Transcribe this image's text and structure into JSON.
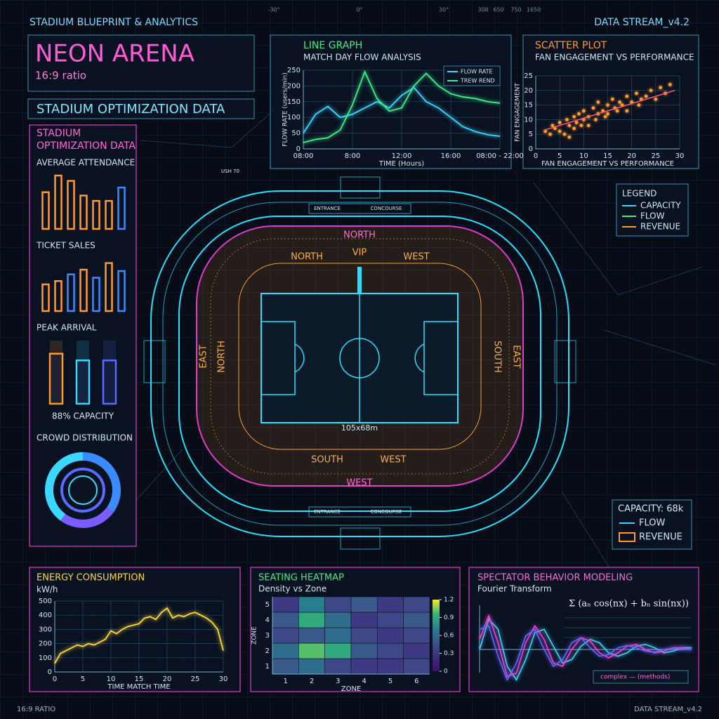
{
  "header": {
    "left": "STADIUM BLUEPRINT & ANALYTICS",
    "right": "DATA STREAM_v4.2",
    "ruler": [
      "-30°",
      "0°",
      "30°",
      "308",
      "650",
      "750",
      "1650"
    ]
  },
  "title": {
    "name": "NEON ARENA",
    "ratio": "16:9 ratio",
    "banner": "STADIUM OPTIMIZATION DATA"
  },
  "left_panel": {
    "title": [
      "STADIUM",
      "OPTIMIZATION DATA"
    ]
  },
  "legend": {
    "title": "LEGEND",
    "items": [
      {
        "label": "CAPACITY",
        "color": "#3ad7ff"
      },
      {
        "label": "FLOW",
        "color": "#3cf08a"
      },
      {
        "label": "REVENUE",
        "color": "#ff9a2e"
      }
    ]
  },
  "capacity_box": {
    "title": "CAPACITY: 68k",
    "items": [
      {
        "label": "FLOW",
        "color": "#3ad7ff"
      },
      {
        "label": "REVENUE",
        "color": "#ff9a2e"
      }
    ]
  },
  "stadium": {
    "labels": [
      "NORTH",
      "NORTH",
      "VIP",
      "WEST",
      "EAST",
      "NORTH",
      "SOUTH",
      "EAST",
      "SOUTH",
      "WEST",
      "WEST",
      "105x68m",
      "ENTRANCE",
      "CONCOURSE",
      "ENTRANCE",
      "CONCOURSE",
      "USH 70"
    ]
  },
  "footer": {
    "left": "16:9 RATIO",
    "right": "DATA STREAM_v4.2"
  },
  "chart_data": [
    {
      "type": "bar",
      "title": "AVERAGE ATTENDANCE",
      "values": [
        55,
        80,
        72,
        50,
        42,
        42,
        62
      ],
      "colors": [
        "#ff9a2e",
        "#ff9a2e",
        "#ff9a2e",
        "#ff9a2e",
        "#ff9a2e",
        "#ff9a2e",
        "#3a8cff"
      ]
    },
    {
      "type": "bar",
      "title": "TICKET SALES",
      "values": [
        40,
        45,
        55,
        62,
        50,
        72,
        60
      ],
      "colors": [
        "#ff9a2e",
        "#ff9a2e",
        "#3a8cff",
        "#ff9a2e",
        "#3a8cff",
        "#ff9a2e",
        "#3a8cff"
      ]
    },
    {
      "type": "bar",
      "title": "PEAK ARRIVAL",
      "values": [
        75,
        65,
        65
      ],
      "colors": [
        "#ff9a2e",
        "#3ad7ff",
        "#5a6cff"
      ],
      "annotation": "88% CAPACITY"
    },
    {
      "type": "pie",
      "title": "CROWD DISTRIBUTION",
      "values": [
        35,
        25,
        40
      ],
      "colors": [
        "#3a8cff",
        "#7a5cff",
        "#3ad7ff"
      ]
    },
    {
      "type": "line",
      "title": "LINE GRAPH",
      "subtitle": "MATCH DAY FLOW ANALYSIS",
      "ylabel": "FLOW RATE (users/min)",
      "xlabel": "TIME (Hours)",
      "x": [
        0,
        0.25,
        0.5,
        0.75,
        1,
        1.25,
        1.5,
        1.75,
        2,
        2.25,
        2.5,
        2.75,
        3,
        3.25,
        3.5,
        3.75,
        4
      ],
      "xlim": [
        0,
        4
      ],
      "xticks": [
        {
          "value": 0,
          "label": "08:00"
        },
        {
          "value": 1,
          "label": "8:00"
        },
        {
          "value": 2,
          "label": "12:00"
        },
        {
          "value": 3,
          "label": "16:00"
        },
        {
          "value": 4,
          "label": "08:00 - 22:00"
        }
      ],
      "ylim": [
        0,
        250
      ],
      "yticks": [
        0,
        50,
        100,
        150,
        200,
        250
      ],
      "grid": true,
      "series": [
        {
          "name": "FLOW RATE",
          "color": "#3ad7ff",
          "values": [
            50,
            110,
            135,
            100,
            110,
            130,
            150,
            130,
            170,
            195,
            150,
            130,
            100,
            70,
            55,
            45,
            40
          ]
        },
        {
          "name": "TREW REND",
          "color": "#3cf08a",
          "values": [
            20,
            30,
            35,
            60,
            140,
            245,
            160,
            120,
            130,
            200,
            240,
            200,
            175,
            165,
            160,
            150,
            145
          ]
        }
      ]
    },
    {
      "type": "scatter",
      "title": "SCATTER PLOT",
      "subtitle": "FAN ENGAGEMENT VS PERFORMANCE",
      "ylabel": "FAN ENGAGEMENT",
      "xlabel": "FAN ENGAGEMENT VS PERFORMANCE",
      "xlim": [
        0,
        30
      ],
      "xticks": [
        0,
        5,
        10,
        15,
        20,
        25,
        30
      ],
      "ylim": [
        0,
        25
      ],
      "yticks": [
        0,
        5,
        10,
        15,
        20,
        25
      ],
      "grid": true,
      "color": "#ff9a2e",
      "x": [
        2,
        3,
        3.5,
        4,
        5,
        5,
        6,
        6.5,
        7,
        7,
        8,
        8,
        8.5,
        9,
        9.5,
        10,
        10,
        11,
        11,
        12,
        12.5,
        13,
        13,
        14,
        14.5,
        15,
        15,
        16,
        16.5,
        17,
        17.5,
        18,
        19,
        19,
        20,
        21,
        21.5,
        22,
        23,
        24,
        25,
        26,
        27,
        28
      ],
      "y": [
        6,
        5,
        8,
        7,
        9,
        6,
        5,
        10,
        8,
        4,
        11,
        7,
        9,
        12,
        8,
        10,
        13,
        11,
        8,
        14,
        10,
        12,
        16,
        13,
        11,
        15,
        12,
        17,
        14,
        13,
        16,
        15,
        18,
        13,
        16,
        19,
        15,
        17,
        18,
        20,
        17,
        21,
        19,
        22
      ],
      "trend": {
        "x": [
          2,
          29
        ],
        "y": [
          6.5,
          20
        ],
        "color": "#ff5a78"
      }
    },
    {
      "type": "line",
      "title": "ENERGY CONSUMPTION",
      "subtitle": "kW/h",
      "xlabel": "TIME MATCH TIME",
      "x": [
        0,
        1,
        2,
        3,
        4,
        5,
        6,
        7,
        8,
        9,
        10,
        11,
        12,
        13,
        14,
        15,
        16,
        17,
        18,
        19,
        20,
        21,
        22,
        23,
        24,
        25,
        26,
        27,
        28,
        29,
        30
      ],
      "xlim": [
        0,
        30
      ],
      "xticks": [
        0,
        5,
        10,
        15,
        20,
        25,
        30
      ],
      "ylim": [
        0,
        500
      ],
      "yticks": [
        0,
        100,
        200,
        300,
        400,
        500
      ],
      "grid": true,
      "series": [
        {
          "name": "kW/h",
          "color": "#ffd83a",
          "values": [
            60,
            130,
            150,
            170,
            190,
            180,
            200,
            190,
            210,
            230,
            290,
            270,
            300,
            320,
            330,
            340,
            380,
            390,
            370,
            420,
            450,
            380,
            400,
            390,
            410,
            420,
            400,
            380,
            350,
            300,
            150
          ]
        }
      ]
    },
    {
      "type": "heatmap",
      "title": "SEATING HEATMAP",
      "subtitle": "Density vs Zone",
      "xlabel": "ZONE",
      "ylabel": "ZONE",
      "xlim": [
        0.5,
        6.5
      ],
      "xticks": [
        1,
        2,
        3,
        4,
        5,
        6
      ],
      "ylim": [
        0.5,
        5.5
      ],
      "yticks": [
        1,
        2,
        3,
        4,
        5
      ],
      "z": [
        [
          0.5,
          0.6,
          0.4,
          0.3,
          0.3,
          0.4
        ],
        [
          0.6,
          1.0,
          0.9,
          0.5,
          0.4,
          0.3
        ],
        [
          0.4,
          0.5,
          0.6,
          0.4,
          0.3,
          0.4
        ],
        [
          0.5,
          0.9,
          0.6,
          0.3,
          0.4,
          0.5
        ],
        [
          0.3,
          0.7,
          0.4,
          0.5,
          0.3,
          0.4
        ]
      ],
      "colorbar": {
        "clim": [
          0,
          1.2
        ],
        "ticks": [
          0,
          0.3,
          0.6,
          0.9,
          1.2
        ]
      }
    },
    {
      "type": "wave",
      "title": "SPECTATOR BEHAVIOR MODELING",
      "subtitle": "Fourier Transform",
      "formula": "Σ (aₙ cos(nx) + bₙ sin(nx))",
      "legend": "complex — (methods)",
      "series": [
        {
          "color": "#3ad7ff",
          "values": [
            0,
            0.9,
            0.6,
            -0.5,
            -0.9,
            -0.3,
            0.5,
            0.6,
            0.1,
            -0.4,
            -0.3,
            0.1,
            0.3,
            0.2,
            -0.1,
            -0.2,
            -0.1,
            0.1,
            0.15,
            0.05,
            -0.1,
            -0.05,
            0.05,
            0.05
          ]
        },
        {
          "color": "#ff3ccf",
          "values": [
            0.3,
            1,
            0.2,
            -0.8,
            -0.7,
            0.2,
            0.7,
            0.3,
            -0.4,
            -0.5,
            0,
            0.35,
            0.25,
            -0.1,
            -0.25,
            -0.1,
            0.1,
            0.15,
            0,
            -0.1,
            -0.05,
            0.05,
            0.05,
            0
          ]
        },
        {
          "color": "#5a6cff",
          "values": [
            0.6,
            0.7,
            -0.2,
            -0.9,
            -0.4,
            0.4,
            0.6,
            0,
            -0.5,
            -0.3,
            0.2,
            0.35,
            0.05,
            -0.2,
            -0.15,
            0.05,
            0.12,
            0.05,
            -0.05,
            -0.08,
            0,
            0.04,
            0.02,
            0
          ]
        }
      ]
    }
  ]
}
